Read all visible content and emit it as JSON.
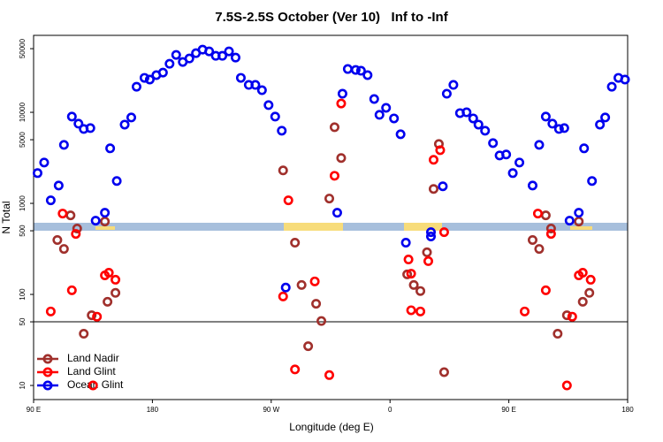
{
  "chart_data": {
    "type": "scatter",
    "title": "7.5S-2.5S October (Ver 10)   Inf to -Inf",
    "xlabel": "Longitude (deg E)",
    "ylabel": "N Total",
    "xlim": [
      90,
      540
    ],
    "xticks": [
      {
        "value": 90,
        "label": "90 E"
      },
      180,
      {
        "value": 270,
        "label": "90 W"
      },
      {
        "value": 360,
        "label": "0"
      },
      {
        "value": 450,
        "label": "90 E"
      },
      {
        "value": 540,
        "label": "180"
      }
    ],
    "ylim": [
      7,
      70000
    ],
    "log_y": true,
    "yticks": [
      10,
      50,
      100,
      500,
      1000,
      5000,
      10000,
      50000
    ],
    "hline": 50,
    "legend": "lower left",
    "series": [
      {
        "name": "Land Nadir",
        "color": "#a0302c",
        "x": [
          108,
          113,
          118,
          123,
          134,
          128,
          144,
          146,
          152,
          279,
          288,
          293,
          298,
          304,
          308,
          314,
          318,
          323,
          373,
          378,
          383,
          388,
          393,
          397,
          401,
          468,
          473,
          478,
          482,
          487,
          494,
          503,
          506,
          511
        ],
        "y": [
          396,
          316,
          738,
          529,
          59,
          37,
          632,
          83,
          104,
          2300,
          370,
          127,
          27,
          79,
          51,
          1130,
          6860,
          3150,
          166,
          127,
          109,
          290,
          1440,
          4490,
          14,
          396,
          316,
          738,
          529,
          37,
          59,
          632,
          83,
          104
        ]
      },
      {
        "name": "Land Glint",
        "color": "#ff0000",
        "x": [
          103,
          112,
          119,
          122,
          135,
          138,
          144,
          147,
          152,
          283,
          279,
          288,
          303,
          314,
          318,
          323,
          374,
          376,
          376,
          383,
          389,
          393,
          398,
          401,
          462,
          472,
          478,
          482,
          494,
          498,
          503,
          506,
          512
        ],
        "y": [
          65,
          773,
          111,
          462,
          10,
          57,
          162,
          173,
          145,
          1080,
          95,
          15,
          139,
          13,
          2010,
          12500,
          242,
          169,
          67,
          65,
          232,
          3010,
          3840,
          483,
          65,
          773,
          111,
          462,
          10,
          57,
          162,
          173,
          145
        ]
      },
      {
        "name": "Ocean Glint",
        "color": "#0000ee",
        "x": [
          93,
          98,
          103,
          109,
          113,
          119,
          124,
          128,
          133,
          137,
          144,
          148,
          153,
          159,
          164,
          168,
          174,
          178,
          183,
          188,
          193,
          198,
          203,
          208,
          213,
          218,
          223,
          228,
          233,
          238,
          243,
          247,
          253,
          258,
          263,
          268,
          273,
          278,
          281,
          320,
          324,
          328,
          334,
          338,
          343,
          348,
          352,
          357,
          363,
          368,
          372,
          391,
          391,
          400,
          403,
          408,
          413,
          418,
          423,
          427,
          432,
          438,
          443,
          448,
          453,
          458,
          468,
          473,
          478,
          483,
          488,
          492,
          496,
          503,
          507,
          513,
          519,
          523,
          528,
          533,
          538
        ],
        "y": [
          2150,
          2810,
          1080,
          1570,
          4390,
          8970,
          7500,
          6560,
          6710,
          646,
          789,
          4020,
          1760,
          7330,
          8770,
          19100,
          23900,
          22900,
          25600,
          27300,
          34100,
          42700,
          35700,
          39000,
          44600,
          48800,
          46700,
          41700,
          41700,
          46700,
          39900,
          23900,
          20000,
          20000,
          17500,
          12000,
          8970,
          6280,
          119,
          789,
          16000,
          29900,
          29200,
          28600,
          25600,
          14000,
          9380,
          11200,
          8570,
          5740,
          370,
          483,
          433,
          1540,
          16000,
          20000,
          9800,
          10000,
          8570,
          7330,
          6280,
          4590,
          3360,
          3440,
          2150,
          2810,
          1570,
          4390,
          8970,
          7500,
          6560,
          6710,
          646,
          789,
          4020,
          1760,
          7330,
          8770,
          19100,
          23900,
          22900
        ]
      }
    ]
  }
}
